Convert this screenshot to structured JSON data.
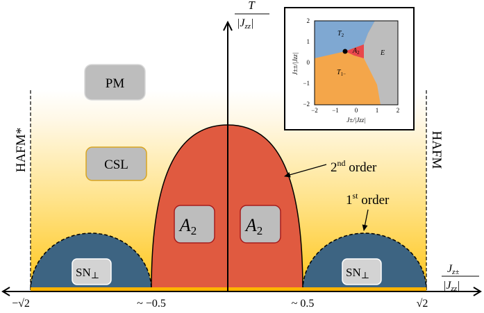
{
  "axes": {
    "y_label_top": "T",
    "y_label_bottom": "|J",
    "y_label_sub": "zz",
    "y_label_end": "|",
    "x_label_top": "J",
    "x_label_top_sub": "z±",
    "x_label_bottom": "|J",
    "x_label_bottom_sub": "zz",
    "x_label_bottom_end": "|",
    "ticks": {
      "left_sqrt": "−√2",
      "left_mid": "~ −0.5",
      "right_mid": "~ 0.5",
      "right_sqrt": "√2"
    }
  },
  "phases": {
    "pm": "PM",
    "csl": "CSL",
    "a2_left": "A",
    "a2_left_sub": "2",
    "a2_right": "A",
    "a2_right_sub": "2",
    "sn_left": "SN",
    "sn_left_sub": "⊥",
    "sn_right": "SN",
    "sn_right_sub": "⊥",
    "hafm_left": "HAFM*",
    "hafm_right": "HAFM"
  },
  "annotations": {
    "second_order": "2",
    "second_order_sup": "nd",
    "second_order_rest": " order",
    "first_order": "1",
    "first_order_sup": "st",
    "first_order_rest": " order"
  },
  "inset": {
    "region_t2": "T",
    "region_t2_sub": "2",
    "region_a2": "A",
    "region_a2_sub": "2",
    "region_t1": "T",
    "region_t1_sub": "1−",
    "region_e": "E",
    "x_label": "J±/|Jzz|",
    "y_label": "J±±/|Jzz|",
    "x_ticks": [
      "−2",
      "−1",
      "0",
      "1",
      "2"
    ],
    "y_ticks": [
      "2",
      "1",
      "0",
      "−1",
      "−2"
    ]
  },
  "colors": {
    "a2_fill": "#e05a40",
    "sn_fill": "#3d6482",
    "gradient_top": "#fff8e6",
    "gradient_bottom": "#ffc61a",
    "inset_t2": "#7fa8d2",
    "inset_t1": "#f4a64a",
    "inset_e": "#bdbdbd",
    "inset_a2": "#e8474c"
  }
}
